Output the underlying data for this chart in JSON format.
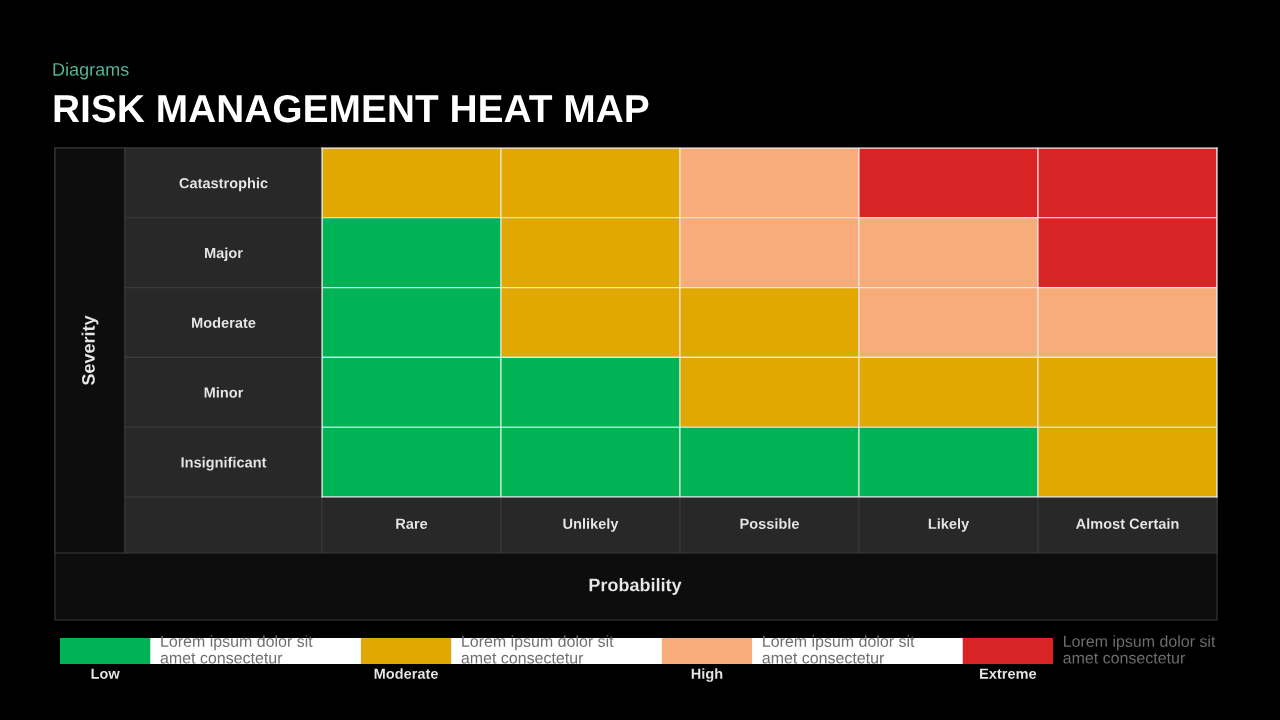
{
  "chart_data": {
    "type": "heatmap",
    "subtitle": "Diagrams",
    "title": "RISK MANAGEMENT HEAT MAP",
    "xlabel": "Probability",
    "ylabel": "Severity",
    "categories": [
      "Rare",
      "Unlikely",
      "Possible",
      "Likely",
      "Almost Certain"
    ],
    "y_categories": [
      "Catastrophic",
      "Major",
      "Moderate",
      "Minor",
      "Insignificant"
    ],
    "cells": [
      [
        2,
        2,
        3,
        4,
        4
      ],
      [
        1,
        2,
        3,
        3,
        4
      ],
      [
        1,
        2,
        2,
        3,
        3
      ],
      [
        1,
        1,
        2,
        2,
        2
      ],
      [
        1,
        1,
        1,
        1,
        2
      ]
    ],
    "colors": [
      "#00b455",
      "#e0a800",
      "#f7ac7a",
      "#d82424"
    ],
    "clim": [
      0.85,
      4.15
    ],
    "cticks": [
      {
        "value": 1,
        "label": "Low"
      },
      {
        "value": 2,
        "label": "Moderate"
      },
      {
        "value": 3,
        "label": "High"
      },
      {
        "value": 4,
        "label": "Extreme"
      }
    ],
    "annotations": [
      "Lorem ipsum dolor sit\namet consectetur",
      "Lorem ipsum dolor sit\namet consectetur",
      "Lorem ipsum dolor sit\namet consectetur",
      "Lorem ipsum dolor sit\namet consectetur"
    ]
  }
}
